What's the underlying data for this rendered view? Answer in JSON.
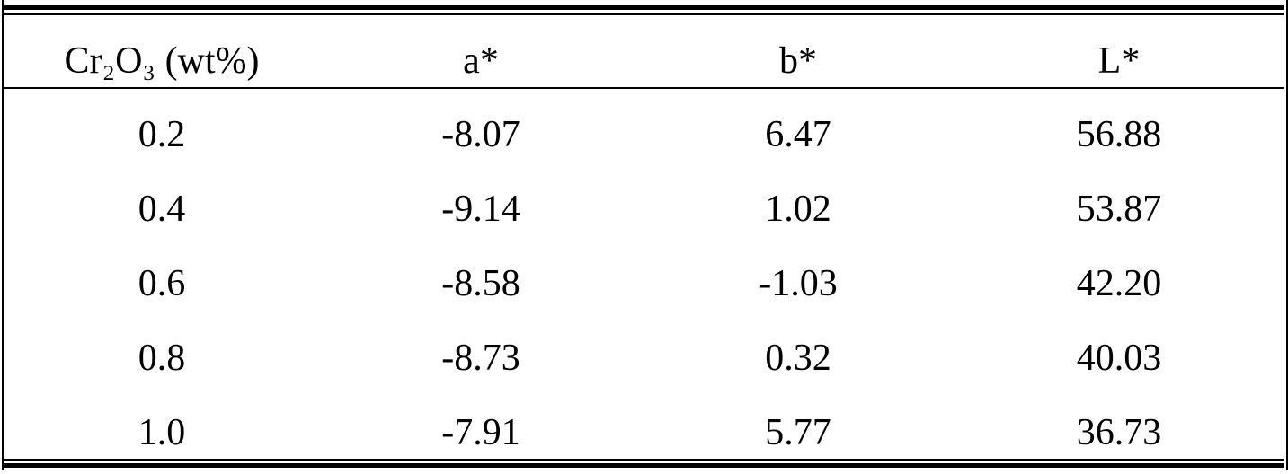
{
  "table": {
    "header": [
      "Cr₂O₃ (wt%)",
      "a*",
      "b*",
      "L*"
    ],
    "rows": [
      [
        "0.2",
        "-8.07",
        "6.47",
        "56.88"
      ],
      [
        "0.4",
        "-9.14",
        "1.02",
        "53.87"
      ],
      [
        "0.6",
        "-8.58",
        "-1.03",
        "42.20"
      ],
      [
        "0.8",
        "-8.73",
        "0.32",
        "40.03"
      ],
      [
        "1.0",
        "-7.91",
        "5.77",
        "36.73"
      ]
    ]
  }
}
